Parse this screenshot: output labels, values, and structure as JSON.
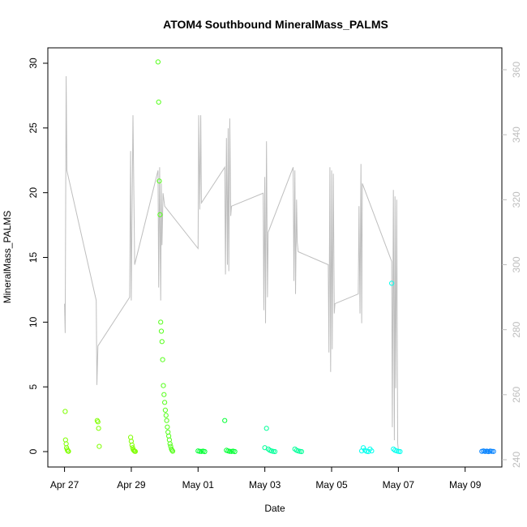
{
  "chart_data": {
    "type": "scatter",
    "title": "ATOM4 Southbound MineralMass_PALMS",
    "xlabel": "Date",
    "ylabel": "MineralMass_PALMS",
    "x_tick_labels": [
      "Apr 27",
      "Apr 29",
      "May 01",
      "May 03",
      "May 05",
      "May 07",
      "May 09"
    ],
    "x_tick_days": [
      0,
      2,
      4,
      6,
      8,
      10,
      12
    ],
    "xlim_days": [
      -0.5,
      13.1
    ],
    "ylim": [
      0,
      30.5
    ],
    "y_ticks": [
      0,
      5,
      10,
      15,
      20,
      25,
      30
    ],
    "ylim_right": [
      240,
      362
    ],
    "y_ticks_right": [
      240,
      260,
      280,
      300,
      320,
      340,
      360
    ],
    "grid": false,
    "legend": "none",
    "line_color": "#bebebe",
    "line_series": {
      "axis": "right",
      "points": [
        [
          0.0,
          288
        ],
        [
          0.02,
          279
        ],
        [
          0.05,
          358
        ],
        [
          0.07,
          329
        ],
        [
          0.95,
          289
        ],
        [
          0.97,
          263
        ],
        [
          1.0,
          275
        ],
        [
          1.95,
          290
        ],
        [
          1.98,
          335
        ],
        [
          2.0,
          289
        ],
        [
          2.05,
          346
        ],
        [
          2.1,
          300
        ],
        [
          2.8,
          329
        ],
        [
          2.82,
          293
        ],
        [
          2.85,
          330
        ],
        [
          2.88,
          289
        ],
        [
          2.9,
          325
        ],
        [
          2.92,
          306
        ],
        [
          2.95,
          322
        ],
        [
          3.0,
          318
        ],
        [
          4.0,
          305
        ],
        [
          4.02,
          346
        ],
        [
          4.05,
          317
        ],
        [
          4.08,
          346
        ],
        [
          4.1,
          319
        ],
        [
          4.8,
          330
        ],
        [
          4.82,
          297
        ],
        [
          4.85,
          339
        ],
        [
          4.88,
          300
        ],
        [
          4.9,
          342
        ],
        [
          4.92,
          298
        ],
        [
          4.95,
          345
        ],
        [
          4.98,
          315
        ],
        [
          5.0,
          318
        ],
        [
          5.95,
          322
        ],
        [
          5.97,
          286
        ],
        [
          6.0,
          327
        ],
        [
          6.02,
          282
        ],
        [
          6.05,
          338
        ],
        [
          6.08,
          290
        ],
        [
          6.1,
          310
        ],
        [
          6.85,
          330
        ],
        [
          6.87,
          295
        ],
        [
          6.9,
          329
        ],
        [
          6.92,
          291
        ],
        [
          6.95,
          320
        ],
        [
          6.97,
          307
        ],
        [
          7.0,
          304
        ],
        [
          7.9,
          300
        ],
        [
          7.92,
          273
        ],
        [
          7.95,
          330
        ],
        [
          7.97,
          267
        ],
        [
          8.0,
          329
        ],
        [
          8.02,
          274
        ],
        [
          8.05,
          328
        ],
        [
          8.08,
          285
        ],
        [
          8.1,
          288
        ],
        [
          8.8,
          291
        ],
        [
          8.82,
          318
        ],
        [
          8.85,
          285
        ],
        [
          8.88,
          331
        ],
        [
          8.9,
          282
        ],
        [
          8.92,
          325
        ],
        [
          9.8,
          301
        ],
        [
          9.82,
          250
        ],
        [
          9.85,
          323
        ],
        [
          9.88,
          246
        ],
        [
          9.9,
          321
        ],
        [
          9.92,
          262
        ],
        [
          9.95,
          320
        ],
        [
          9.98,
          245
        ],
        [
          10.0,
          243
        ]
      ]
    },
    "scatter_series": [
      {
        "color": "#7fff00",
        "x": [
          0.02,
          0.03,
          0.05,
          0.06,
          0.08,
          0.1,
          0.12,
          0.98,
          1.0,
          1.02,
          1.04,
          1.98,
          2.0,
          2.02,
          2.04,
          2.06,
          2.08,
          2.1,
          2.12
        ],
        "y": [
          3.1,
          0.9,
          0.6,
          0.3,
          0.15,
          0.05,
          0.02,
          2.4,
          2.3,
          1.8,
          0.4,
          1.1,
          0.8,
          0.5,
          0.3,
          0.15,
          0.08,
          0.03,
          0.01
        ]
      },
      {
        "color": "#55ff1a",
        "x": [
          2.8,
          2.82,
          2.84,
          2.86,
          2.88,
          2.9,
          2.92,
          2.94,
          2.96,
          2.98,
          3.0,
          3.02,
          3.04,
          3.06,
          3.08,
          3.1,
          3.12,
          3.14,
          3.16,
          3.18,
          3.2,
          3.22,
          3.24
        ],
        "y": [
          30.1,
          27.0,
          20.9,
          18.3,
          10.0,
          9.3,
          8.5,
          7.1,
          5.1,
          4.4,
          3.8,
          3.2,
          2.8,
          2.4,
          1.9,
          1.5,
          1.2,
          0.9,
          0.6,
          0.4,
          0.2,
          0.1,
          0.03
        ]
      },
      {
        "color": "#00ff33",
        "x": [
          4.0,
          4.05,
          4.1,
          4.15,
          4.2,
          4.8,
          4.85,
          4.9,
          4.95,
          5.0,
          5.05,
          5.1
        ],
        "y": [
          0.05,
          0.02,
          0.01,
          0.03,
          0.0,
          2.4,
          0.1,
          0.05,
          0.02,
          0.01,
          0.03,
          0.0
        ]
      },
      {
        "color": "#00ff99",
        "x": [
          6.0,
          6.05,
          6.1,
          6.15,
          6.2,
          6.25,
          6.3,
          6.9,
          6.95,
          7.0,
          7.05,
          7.1
        ],
        "y": [
          0.3,
          1.8,
          0.2,
          0.1,
          0.05,
          0.02,
          0.0,
          0.2,
          0.1,
          0.05,
          0.02,
          0.0
        ]
      },
      {
        "color": "#00ffee",
        "x": [
          8.9,
          8.95,
          9.0,
          9.05,
          9.1,
          9.15,
          9.2,
          9.8,
          9.85,
          9.9,
          9.95,
          10.0,
          10.05
        ],
        "y": [
          0.05,
          0.3,
          0.1,
          0.02,
          0.0,
          0.2,
          0.05,
          13.0,
          0.2,
          0.1,
          0.05,
          0.02,
          0.0
        ]
      },
      {
        "color": "#0080ff",
        "x": [
          12.5,
          12.55,
          12.6,
          12.65,
          12.7,
          12.75,
          12.8,
          12.85
        ],
        "y": [
          0.02,
          0.05,
          0.01,
          0.03,
          0.0,
          0.04,
          0.02,
          0.01
        ]
      }
    ]
  }
}
